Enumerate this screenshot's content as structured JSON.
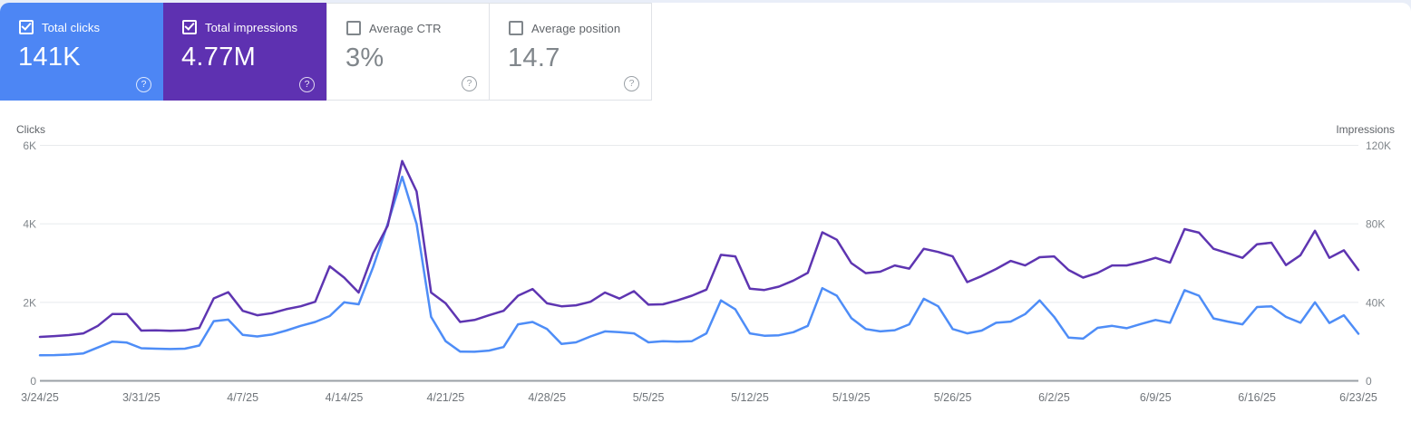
{
  "page": {
    "background": "#e9eef8",
    "panel_background": "#ffffff"
  },
  "icons": {
    "help": "?"
  },
  "metric_cards": [
    {
      "label": "Total clicks",
      "value": "141K",
      "checked": true,
      "background": "#4d86f4",
      "text_color": "#ffffff"
    },
    {
      "label": "Total impressions",
      "value": "4.77M",
      "checked": true,
      "background": "#5e31b1",
      "text_color": "#ffffff"
    },
    {
      "label": "Average CTR",
      "value": "3%",
      "checked": false,
      "background": "#ffffff",
      "text_color": "#80868b"
    },
    {
      "label": "Average position",
      "value": "14.7",
      "checked": false,
      "background": "#ffffff",
      "text_color": "#80868b"
    }
  ],
  "chart_data": {
    "type": "line",
    "title": "",
    "grid": true,
    "grid_color": "#e8eaed",
    "zero_line_color": "#9aa0a6",
    "tick_text_color": "#80868b",
    "axis_title_color": "#5f6368",
    "date_text_color": "#70757a",
    "left_axis": {
      "title": "Clicks",
      "ticks": [
        "0",
        "2K",
        "4K",
        "6K"
      ],
      "max": 6000
    },
    "right_axis": {
      "title": "Impressions",
      "ticks": [
        "0",
        "40K",
        "80K",
        "120K"
      ],
      "max": 120000
    },
    "x_tick_labels": [
      "3/24/25",
      "3/31/25",
      "4/7/25",
      "4/14/25",
      "4/21/25",
      "4/28/25",
      "5/5/25",
      "5/12/25",
      "5/19/25",
      "5/26/25",
      "6/2/25",
      "6/9/25",
      "6/16/25",
      "6/23/25"
    ],
    "x": [
      "3/24/25",
      "3/25/25",
      "3/26/25",
      "3/27/25",
      "3/28/25",
      "3/29/25",
      "3/30/25",
      "3/31/25",
      "4/1/25",
      "4/2/25",
      "4/3/25",
      "4/4/25",
      "4/5/25",
      "4/6/25",
      "4/7/25",
      "4/8/25",
      "4/9/25",
      "4/10/25",
      "4/11/25",
      "4/12/25",
      "4/13/25",
      "4/14/25",
      "4/15/25",
      "4/16/25",
      "4/17/25",
      "4/18/25",
      "4/19/25",
      "4/20/25",
      "4/21/25",
      "4/22/25",
      "4/23/25",
      "4/24/25",
      "4/25/25",
      "4/26/25",
      "4/27/25",
      "4/28/25",
      "4/29/25",
      "4/30/25",
      "5/1/25",
      "5/2/25",
      "5/3/25",
      "5/4/25",
      "5/5/25",
      "5/6/25",
      "5/7/25",
      "5/8/25",
      "5/9/25",
      "5/10/25",
      "5/11/25",
      "5/12/25",
      "5/13/25",
      "5/14/25",
      "5/15/25",
      "5/16/25",
      "5/17/25",
      "5/18/25",
      "5/19/25",
      "5/20/25",
      "5/21/25",
      "5/22/25",
      "5/23/25",
      "5/24/25",
      "5/25/25",
      "5/26/25",
      "5/27/25",
      "5/28/25",
      "5/29/25",
      "5/30/25",
      "5/31/25",
      "6/1/25",
      "6/2/25",
      "6/3/25",
      "6/4/25",
      "6/5/25",
      "6/6/25",
      "6/7/25",
      "6/8/25",
      "6/9/25",
      "6/10/25",
      "6/11/25",
      "6/12/25",
      "6/13/25",
      "6/14/25",
      "6/15/25",
      "6/16/25",
      "6/17/25",
      "6/18/25",
      "6/19/25",
      "6/20/25",
      "6/21/25",
      "6/22/25",
      "6/23/25"
    ],
    "series": [
      {
        "name": "Total clicks",
        "axis": "left",
        "color": "#4e8df7",
        "values": [
          650,
          655,
          670,
          700,
          850,
          1000,
          975,
          830,
          820,
          810,
          820,
          900,
          1520,
          1560,
          1170,
          1130,
          1180,
          1280,
          1400,
          1500,
          1650,
          2000,
          1950,
          2900,
          4000,
          5200,
          4000,
          1630,
          1010,
          745,
          740,
          770,
          860,
          1440,
          1500,
          1320,
          940,
          980,
          1130,
          1260,
          1240,
          1210,
          980,
          1010,
          1000,
          1010,
          1210,
          2050,
          1820,
          1210,
          1150,
          1160,
          1240,
          1400,
          2360,
          2170,
          1600,
          1320,
          1260,
          1290,
          1440,
          2090,
          1900,
          1320,
          1210,
          1280,
          1480,
          1510,
          1700,
          2050,
          1630,
          1100,
          1075,
          1350,
          1400,
          1340,
          1450,
          1550,
          1480,
          2310,
          2170,
          1590,
          1510,
          1440,
          1880,
          1900,
          1630,
          1480,
          2000,
          1475,
          1670,
          1200
        ]
      },
      {
        "name": "Total impressions",
        "axis": "right",
        "color": "#5e35b1",
        "values": [
          22400,
          22800,
          23300,
          24200,
          28000,
          34000,
          34000,
          25600,
          25700,
          25500,
          25700,
          27000,
          42000,
          45200,
          35700,
          33400,
          34500,
          36500,
          38000,
          40300,
          58400,
          52600,
          45000,
          65000,
          79000,
          112000,
          96500,
          45000,
          39500,
          30000,
          31000,
          33400,
          35700,
          43400,
          46800,
          39500,
          38000,
          38500,
          40300,
          45000,
          41900,
          45700,
          38800,
          39000,
          41000,
          43400,
          46500,
          64200,
          63400,
          47000,
          46300,
          48000,
          51100,
          55000,
          75700,
          71900,
          60000,
          54900,
          55600,
          58800,
          57200,
          67300,
          65700,
          63400,
          50300,
          53400,
          57000,
          61100,
          58800,
          63000,
          63400,
          56500,
          52600,
          55000,
          58800,
          58800,
          60500,
          62700,
          60300,
          77300,
          75500,
          67300,
          65000,
          62700,
          69600,
          70400,
          59000,
          64000,
          76500,
          62700,
          66500,
          56500
        ]
      }
    ]
  }
}
